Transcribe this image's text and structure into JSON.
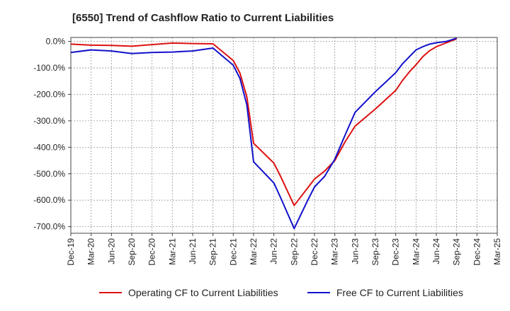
{
  "chart_data": {
    "type": "line",
    "title": "[6550]  Trend of Cashflow Ratio to Current Liabilities",
    "xlabel": "",
    "ylabel": "",
    "x_ticks": [
      "Dec-19",
      "Mar-20",
      "Jun-20",
      "Sep-20",
      "Dec-20",
      "Mar-21",
      "Jun-21",
      "Sep-21",
      "Dec-21",
      "Mar-22",
      "Jun-22",
      "Sep-22",
      "Dec-22",
      "Mar-23",
      "Jun-23",
      "Sep-23",
      "Dec-23",
      "Mar-24",
      "Jun-24",
      "Sep-24",
      "Dec-24",
      "Mar-25"
    ],
    "y_ticks": [
      "0.0%",
      "-100.0%",
      "-200.0%",
      "-300.0%",
      "-400.0%",
      "-500.0%",
      "-600.0%",
      "-700.0%"
    ],
    "y_tick_values": [
      0,
      -100,
      -200,
      -300,
      -400,
      -500,
      -600,
      -700
    ],
    "ylim": [
      -725,
      15
    ],
    "grid": true,
    "legend_position": "bottom",
    "series": [
      {
        "name": "Operating CF to Current Liabilities",
        "color": "#dd1111",
        "points": [
          [
            0,
            -10
          ],
          [
            1,
            -14
          ],
          [
            2,
            -15
          ],
          [
            3,
            -18
          ],
          [
            4,
            -12
          ],
          [
            5,
            -6
          ],
          [
            6,
            -8
          ],
          [
            7,
            -9
          ],
          [
            8,
            -72
          ],
          [
            8.33,
            -120
          ],
          [
            8.67,
            -210
          ],
          [
            9,
            -385
          ],
          [
            10,
            -460
          ],
          [
            10.33,
            -510
          ],
          [
            11,
            -620
          ],
          [
            12,
            -520
          ],
          [
            12.5,
            -490
          ],
          [
            13,
            -450
          ],
          [
            13.5,
            -380
          ],
          [
            14,
            -320
          ],
          [
            15,
            -255
          ],
          [
            16,
            -185
          ],
          [
            16.33,
            -148
          ],
          [
            16.67,
            -115
          ],
          [
            17,
            -88
          ],
          [
            17.33,
            -58
          ],
          [
            17.67,
            -35
          ],
          [
            18,
            -20
          ],
          [
            18.5,
            -5
          ],
          [
            19,
            10
          ]
        ]
      },
      {
        "name": "Free CF to Current Liabilities",
        "color": "#1111cc",
        "points": [
          [
            0,
            -42
          ],
          [
            1,
            -32
          ],
          [
            2,
            -36
          ],
          [
            3,
            -46
          ],
          [
            4,
            -42
          ],
          [
            5,
            -40
          ],
          [
            6,
            -36
          ],
          [
            7,
            -25
          ],
          [
            8,
            -90
          ],
          [
            8.33,
            -140
          ],
          [
            8.67,
            -240
          ],
          [
            9,
            -455
          ],
          [
            10,
            -535
          ],
          [
            10.33,
            -590
          ],
          [
            11,
            -707
          ],
          [
            11.67,
            -600
          ],
          [
            12,
            -550
          ],
          [
            12.5,
            -510
          ],
          [
            13,
            -445
          ],
          [
            13.5,
            -355
          ],
          [
            14,
            -268
          ],
          [
            15,
            -190
          ],
          [
            16,
            -118
          ],
          [
            16.33,
            -85
          ],
          [
            16.67,
            -58
          ],
          [
            17,
            -32
          ],
          [
            17.33,
            -20
          ],
          [
            17.67,
            -10
          ],
          [
            18,
            -5
          ],
          [
            18.5,
            0
          ],
          [
            19,
            12
          ]
        ]
      }
    ]
  }
}
